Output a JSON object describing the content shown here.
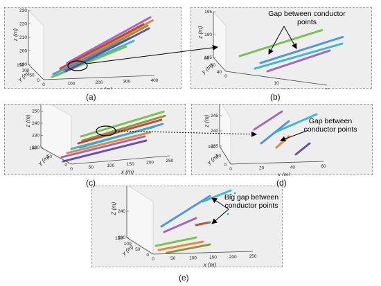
{
  "chart_data": [
    {
      "type": "scatter",
      "panel": "a",
      "caption": "(a)",
      "zlabel": "z (m)",
      "ylabel": "y (m)",
      "xlabel": "x (m)",
      "zticks": [
        "190",
        "200",
        "210",
        "220",
        "230"
      ],
      "yticks": [
        "0",
        "50",
        "100",
        "150"
      ],
      "xticks": [
        "0",
        "100",
        "200",
        "300",
        "400"
      ],
      "series_colors": [
        "#9b59b6",
        "#e67e22",
        "#c0392b",
        "#8a8a2a",
        "#3b8fd6",
        "#2bb3c8",
        "#6cbf3f",
        "#5a3fa0"
      ]
    },
    {
      "type": "scatter",
      "panel": "b",
      "caption": "(b)",
      "zlabel": "z (m)",
      "ylabel": "y (m)",
      "xlabel": "x (m)",
      "zticks": [
        "185",
        "190",
        "195"
      ],
      "yticks": [
        "40",
        "60",
        "80"
      ],
      "xticks": [
        "0",
        "10",
        "20"
      ],
      "annotation": "Gap between conductor points",
      "series_colors": [
        "#6cbf3f",
        "#3b8fd6",
        "#2bb3c8",
        "#9b59b6"
      ]
    },
    {
      "type": "scatter",
      "panel": "c",
      "caption": "(c)",
      "zlabel": "z (m)",
      "ylabel": "y (m)",
      "xlabel": "x (m)",
      "zticks": [
        "220",
        "230",
        "240",
        "250",
        "260"
      ],
      "yticks": [
        "0",
        "50",
        "100"
      ],
      "xticks": [
        "0",
        "50",
        "100",
        "150",
        "200",
        "250"
      ],
      "series_colors": [
        "#6cbf3f",
        "#8a8a2a",
        "#c0392b",
        "#3b8fd6",
        "#2bb3c8",
        "#e67e22",
        "#9b59b6",
        "#5a3fa0"
      ]
    },
    {
      "type": "scatter",
      "panel": "d",
      "caption": "(d)",
      "zlabel": "z (m)",
      "ylabel": "y (m)",
      "xlabel": "x (m)",
      "zticks": [
        "235",
        "240",
        "245",
        "250"
      ],
      "yticks": [
        "0",
        "50",
        "100"
      ],
      "xticks": [
        "0",
        "20",
        "40",
        "60"
      ],
      "annotation": "Gap between conductor points",
      "series_colors": [
        "#9b59b6",
        "#3b8fd6",
        "#e67e22",
        "#2bb3c8",
        "#5a3fa0"
      ]
    },
    {
      "type": "scatter",
      "panel": "e",
      "caption": "(e)",
      "zlabel": "Z (m)",
      "ylabel": "y (m)",
      "xlabel": "x (m)",
      "zticks": [
        "230",
        "240",
        "250"
      ],
      "yticks": [
        "0",
        "50",
        "100",
        "150"
      ],
      "xticks": [
        "0",
        "50",
        "100",
        "150",
        "200",
        "250"
      ],
      "annotation": "Big gap between conductor points",
      "series_colors": [
        "#3b8fd6",
        "#9b59b6",
        "#6cbf3f",
        "#e67e22",
        "#8a8a2a",
        "#2bb3c8",
        "#c0392b"
      ]
    }
  ]
}
